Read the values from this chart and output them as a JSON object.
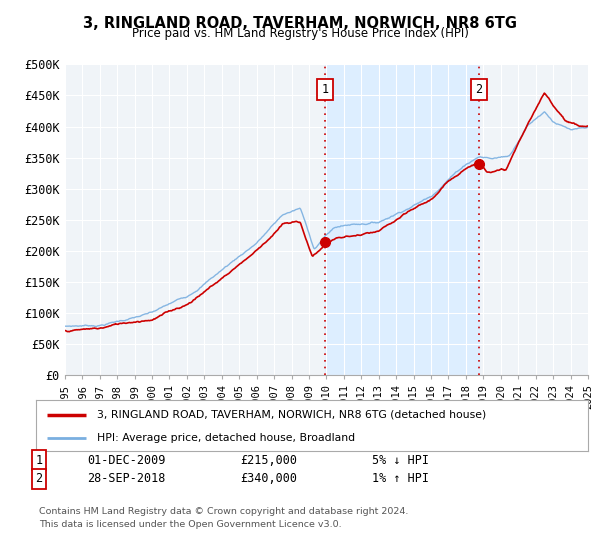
{
  "title": "3, RINGLAND ROAD, TAVERHAM, NORWICH, NR8 6TG",
  "subtitle": "Price paid vs. HM Land Registry's House Price Index (HPI)",
  "xlim": [
    1995,
    2025
  ],
  "ylim": [
    0,
    500000
  ],
  "yticks": [
    0,
    50000,
    100000,
    150000,
    200000,
    250000,
    300000,
    350000,
    400000,
    450000,
    500000
  ],
  "ytick_labels": [
    "£0",
    "£50K",
    "£100K",
    "£150K",
    "£200K",
    "£250K",
    "£300K",
    "£350K",
    "£400K",
    "£450K",
    "£500K"
  ],
  "xticks": [
    1995,
    1996,
    1997,
    1998,
    1999,
    2000,
    2001,
    2002,
    2003,
    2004,
    2005,
    2006,
    2007,
    2008,
    2009,
    2010,
    2011,
    2012,
    2013,
    2014,
    2015,
    2016,
    2017,
    2018,
    2019,
    2020,
    2021,
    2022,
    2023,
    2024,
    2025
  ],
  "sale1_x": 2009.917,
  "sale1_y": 215000,
  "sale1_label": "1",
  "sale2_x": 2018.75,
  "sale2_y": 340000,
  "sale2_label": "2",
  "legend_line1": "3, RINGLAND ROAD, TAVERHAM, NORWICH, NR8 6TG (detached house)",
  "legend_line2": "HPI: Average price, detached house, Broadland",
  "annotation1_box": "1",
  "annotation1_date": "01-DEC-2009",
  "annotation1_price": "£215,000",
  "annotation1_hpi": "5% ↓ HPI",
  "annotation2_box": "2",
  "annotation2_date": "28-SEP-2018",
  "annotation2_price": "£340,000",
  "annotation2_hpi": "1% ↑ HPI",
  "footer1": "Contains HM Land Registry data © Crown copyright and database right 2024.",
  "footer2": "This data is licensed under the Open Government Licence v3.0.",
  "red_color": "#cc0000",
  "blue_color": "#7aafe0",
  "shade_color": "#ddeeff",
  "plot_bg": "#f0f4f8",
  "grid_color": "#ffffff"
}
